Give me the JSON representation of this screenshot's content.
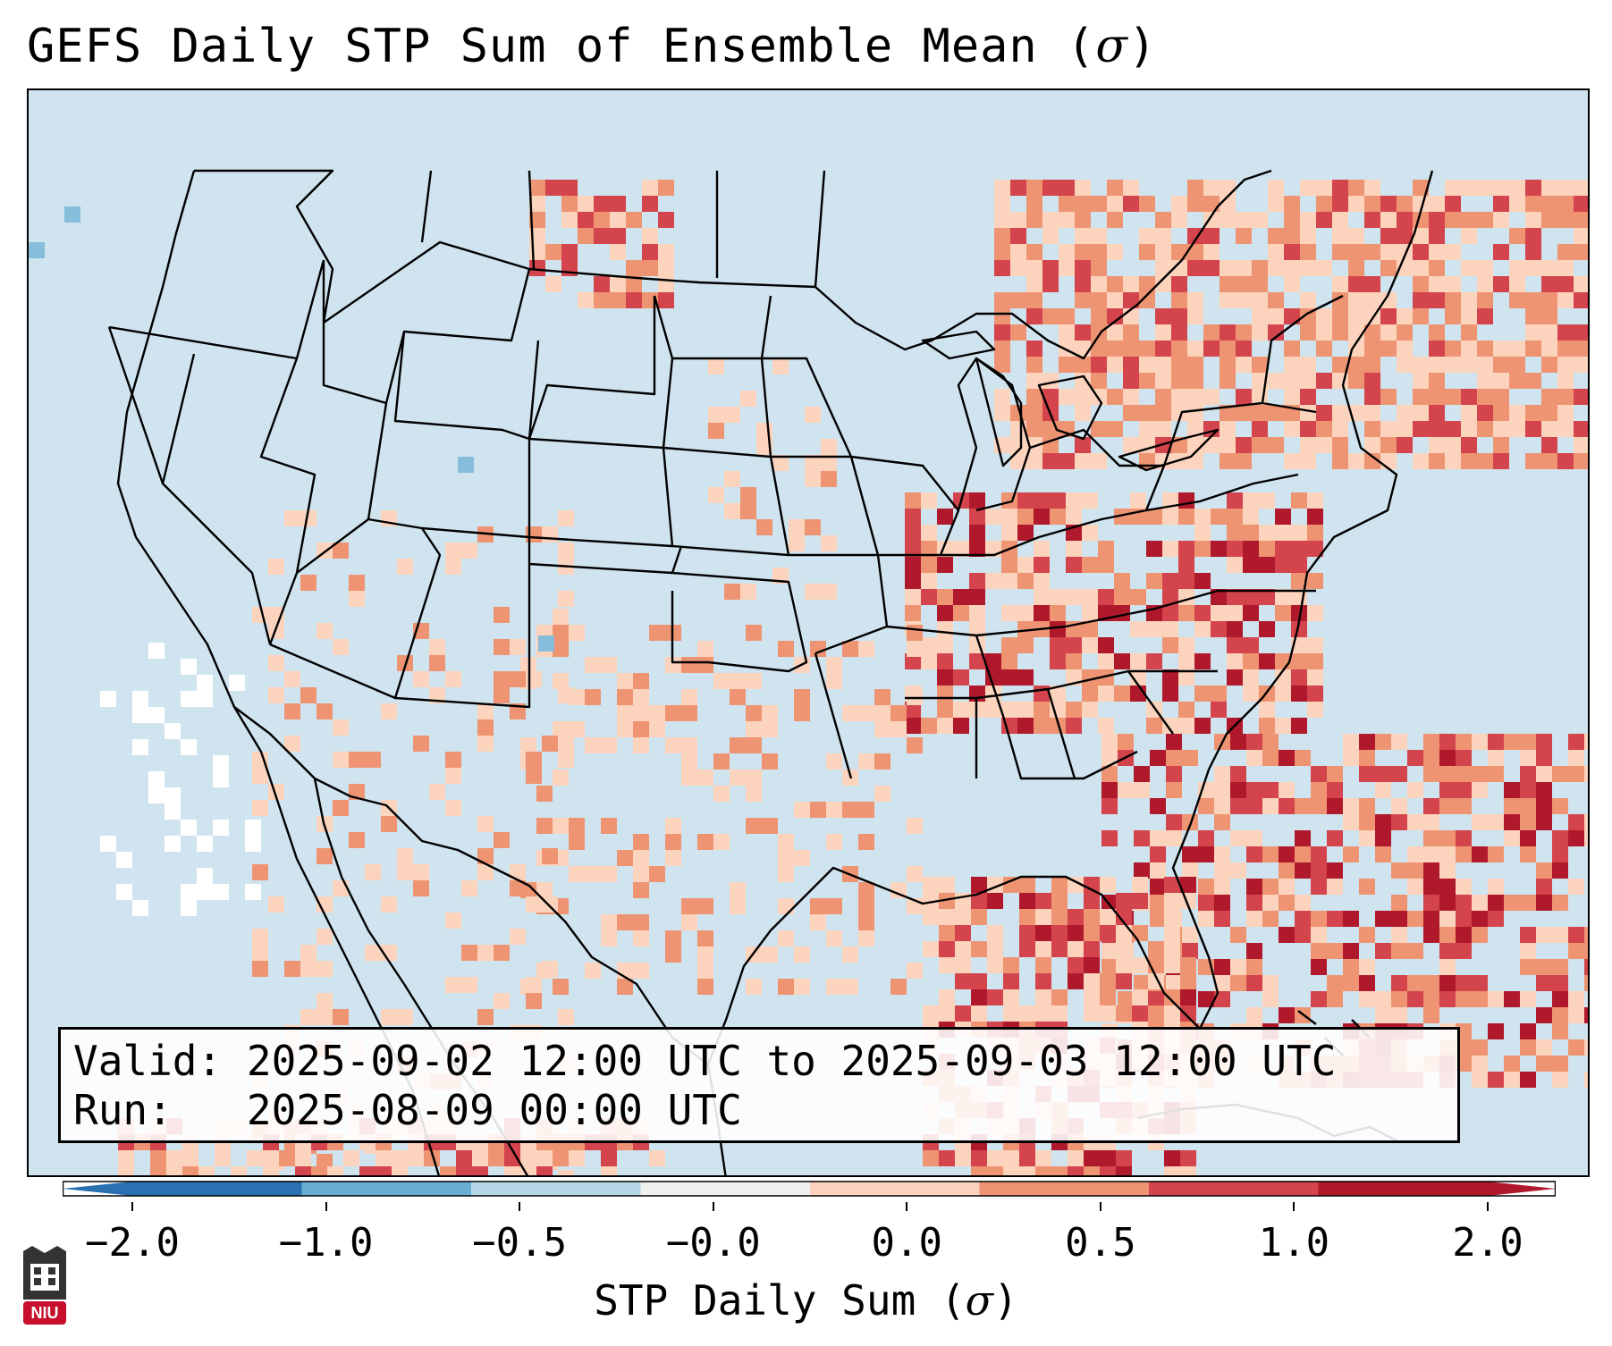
{
  "title": {
    "text": "GEFS Daily STP Sum of Ensemble Mean (",
    "symbol": "σ",
    "suffix": ")"
  },
  "info": {
    "valid_label": "Valid:",
    "valid_value": "2025-09-02 12:00 UTC to 2025-09-03 12:00 UTC",
    "run_label": "Run:",
    "run_value": "2025-08-09 00:00 UTC"
  },
  "colorbar": {
    "ticks": [
      "−2.0",
      "−1.0",
      "−0.5",
      "−0.0",
      "0.0",
      "0.5",
      "1.0",
      "2.0"
    ],
    "colors": [
      "#2a71b2",
      "#68aed3",
      "#b6d7e8",
      "#f0f0f0",
      "#fcd3bc",
      "#ee9472",
      "#d3444c",
      "#b0182b"
    ],
    "extend_low_color": "#2a71b2",
    "extend_high_color": "#b0182b",
    "label_text": "STP Daily Sum (",
    "label_symbol": "σ",
    "label_suffix": ")"
  },
  "map": {
    "background_color": "#d0e4ef",
    "field_colors": {
      "light": "#fcd3bc",
      "medium": "#ee9472",
      "strong": "#d3444c",
      "extreme": "#b0182b",
      "negative": "#86bddb",
      "white": "#ffffff"
    }
  },
  "logo": {
    "text": "NIU"
  }
}
